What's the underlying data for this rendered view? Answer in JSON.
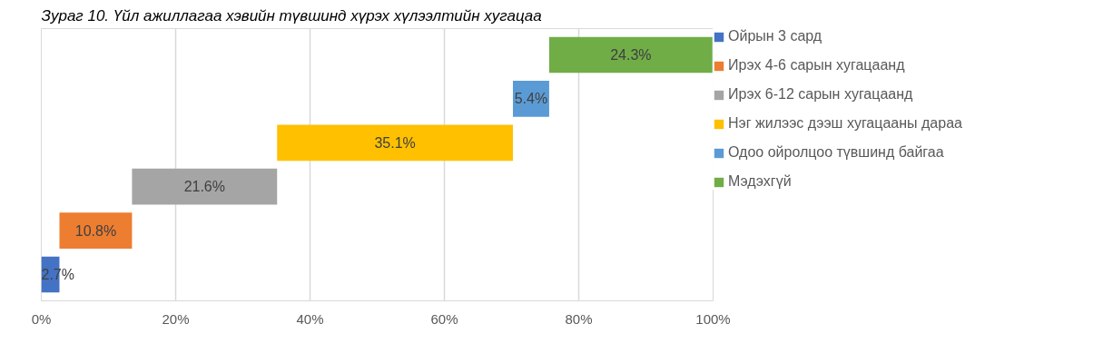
{
  "chart_data": {
    "type": "bar",
    "orientation": "horizontal",
    "title": "Зураг 10. Үйл ажиллагаа хэвийн түвшинд хүрэх хүлээлтийн хугацаа",
    "categories": [
      null,
      null,
      null,
      null,
      null,
      null
    ],
    "series": [
      {
        "name": "Ойрын 3 сард",
        "color": "#4472c4",
        "values": [
          null,
          null,
          null,
          null,
          null,
          2.7
        ],
        "base": [
          null,
          null,
          null,
          null,
          null,
          0
        ],
        "value_labels": [
          null,
          null,
          null,
          null,
          null,
          "2.7%"
        ]
      },
      {
        "name": "Ирэх 4-6 сарын хугацаанд",
        "color": "#ed7d31",
        "values": [
          null,
          null,
          null,
          null,
          10.8,
          null
        ],
        "base": [
          null,
          null,
          null,
          null,
          2.7,
          null
        ],
        "value_labels": [
          null,
          null,
          null,
          null,
          "10.8%",
          null
        ]
      },
      {
        "name": "Ирэх 6-12 сарын хугацаанд",
        "color": "#a5a5a5",
        "values": [
          null,
          null,
          null,
          21.6,
          null,
          null
        ],
        "base": [
          null,
          null,
          null,
          13.5,
          null,
          null
        ],
        "value_labels": [
          null,
          null,
          null,
          "21.6%",
          null,
          null
        ]
      },
      {
        "name": "Нэг жилээс дээш хугацааны дараа",
        "color": "#ffc000",
        "values": [
          null,
          null,
          35.1,
          null,
          null,
          null
        ],
        "base": [
          null,
          null,
          35.1,
          null,
          null,
          null
        ],
        "value_labels": [
          null,
          null,
          "35.1%",
          null,
          null,
          null
        ]
      },
      {
        "name": "Одоо ойролцоо түвшинд байгаа",
        "color": "#5b9bd5",
        "values": [
          null,
          5.4,
          null,
          null,
          null,
          null
        ],
        "base": [
          null,
          70.2,
          null,
          null,
          null,
          null
        ],
        "value_labels": [
          null,
          "5.4%",
          null,
          null,
          null,
          null
        ]
      },
      {
        "name": "Мэдэхгүй",
        "color": "#70ad47",
        "values": [
          24.3,
          null,
          null,
          null,
          null,
          null
        ],
        "base": [
          75.6,
          null,
          null,
          null,
          null,
          null
        ],
        "value_labels": [
          "24.3%",
          null,
          null,
          null,
          null,
          null
        ]
      }
    ],
    "xlim": [
      0,
      100
    ],
    "xticks": [
      {
        "value": 0,
        "label": "0%"
      },
      {
        "value": 20,
        "label": "20%"
      },
      {
        "value": 40,
        "label": "40%"
      },
      {
        "value": 60,
        "label": "60%"
      },
      {
        "value": 80,
        "label": "80%"
      },
      {
        "value": 100,
        "label": "100%"
      }
    ],
    "grid": "x",
    "legend": "right",
    "tick_labels": "x"
  }
}
